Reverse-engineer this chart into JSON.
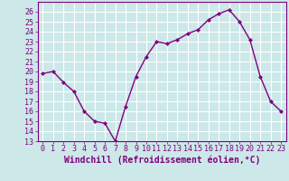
{
  "x": [
    0,
    1,
    2,
    3,
    4,
    5,
    6,
    7,
    8,
    9,
    10,
    11,
    12,
    13,
    14,
    15,
    16,
    17,
    18,
    19,
    20,
    21,
    22,
    23
  ],
  "y": [
    19.8,
    20.0,
    18.9,
    18.0,
    16.0,
    15.0,
    14.8,
    13.0,
    16.5,
    19.5,
    21.5,
    23.0,
    22.8,
    23.2,
    23.8,
    24.2,
    25.2,
    25.8,
    26.2,
    25.0,
    23.2,
    19.5,
    17.0,
    16.0
  ],
  "line_color": "#800080",
  "marker": "D",
  "marker_size": 2,
  "line_width": 1.0,
  "xlabel": "Windchill (Refroidissement éolien,°C)",
  "xlabel_fontsize": 7,
  "ylim": [
    13,
    27
  ],
  "xlim": [
    -0.5,
    23.5
  ],
  "yticks": [
    13,
    14,
    15,
    16,
    17,
    18,
    19,
    20,
    21,
    22,
    23,
    24,
    25,
    26
  ],
  "xtick_labels": [
    "0",
    "1",
    "2",
    "3",
    "4",
    "5",
    "6",
    "7",
    "8",
    "9",
    "10",
    "11",
    "12",
    "13",
    "14",
    "15",
    "16",
    "17",
    "18",
    "19",
    "20",
    "21",
    "22",
    "23"
  ],
  "background_color": "#cce8e8",
  "grid_color": "#ffffff",
  "tick_fontsize": 6
}
